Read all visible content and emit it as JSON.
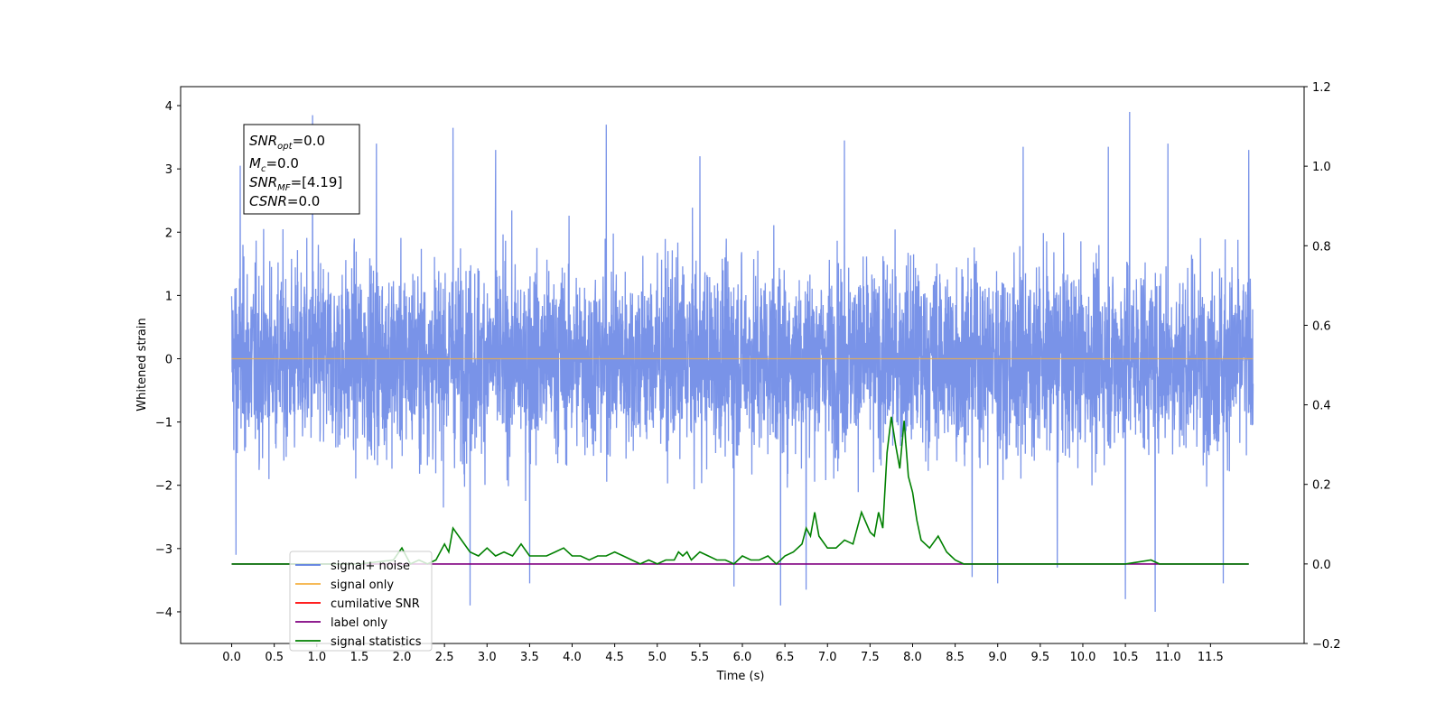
{
  "chart_data": {
    "type": "line",
    "xlabel": "Time (s)",
    "ylabel": "Whitened strain",
    "xlim": [
      -0.6,
      12.6
    ],
    "ylim": [
      -4.5,
      4.3
    ],
    "ylim_right": [
      -0.2,
      1.2
    ],
    "x_ticks": [
      "0.0",
      "0.5",
      "1.0",
      "1.5",
      "2.0",
      "2.5",
      "3.0",
      "3.5",
      "4.0",
      "4.5",
      "5.0",
      "5.5",
      "6.0",
      "6.5",
      "7.0",
      "7.5",
      "8.0",
      "8.5",
      "9.0",
      "9.5",
      "10.0",
      "10.5",
      "11.0",
      "11.5"
    ],
    "y_ticks": [
      "4",
      "3",
      "2",
      "1",
      "0",
      "−1",
      "−2",
      "−3",
      "−4"
    ],
    "y_ticks_right": [
      "1.2",
      "1.0",
      "0.8",
      "0.6",
      "0.4",
      "0.2",
      "0.0",
      "−0.2"
    ],
    "annotation": {
      "line1_main": "SNR",
      "line1_sub": "opt",
      "line1_val": "=0.0",
      "line2_main": "M",
      "line2_sub": "c",
      "line2_val": "=0.0",
      "line3_main": "SNR",
      "line3_sub": "MF",
      "line3_val": "=[4.19]",
      "line4_main": "CSNR",
      "line4_val": "=0.0"
    },
    "legend": {
      "placement": "lower-left",
      "entries": [
        {
          "label": "signal+ noise",
          "color": "#5a7be0"
        },
        {
          "label": "signal only",
          "color": "#f5b041"
        },
        {
          "label": "cumilative SNR",
          "color": "#ff0000"
        },
        {
          "label": "label only",
          "color": "#800080"
        },
        {
          "label": "signal statistics",
          "color": "#008000"
        }
      ]
    },
    "series": [
      {
        "name": "signal+ noise",
        "axis": "left",
        "color": "#5a7be0",
        "style": "dense noise, roughly -1.7 to 1.7 with spikes to about ±4",
        "x_range": [
          0.0,
          12.0
        ],
        "spikes": [
          [
            0.05,
            -3.1
          ],
          [
            0.1,
            3.05
          ],
          [
            0.95,
            3.85
          ],
          [
            1.7,
            3.4
          ],
          [
            2.6,
            3.65
          ],
          [
            2.8,
            -3.9
          ],
          [
            3.1,
            3.3
          ],
          [
            3.5,
            -3.55
          ],
          [
            4.4,
            3.7
          ],
          [
            5.5,
            3.2
          ],
          [
            5.9,
            -3.6
          ],
          [
            6.45,
            -3.9
          ],
          [
            6.75,
            -3.65
          ],
          [
            7.2,
            3.45
          ],
          [
            8.7,
            -3.45
          ],
          [
            9.0,
            -3.55
          ],
          [
            9.3,
            3.35
          ],
          [
            9.7,
            -3.3
          ],
          [
            10.3,
            3.35
          ],
          [
            10.5,
            -3.8
          ],
          [
            10.55,
            3.9
          ],
          [
            10.85,
            -4.0
          ],
          [
            11.0,
            3.4
          ],
          [
            11.65,
            -3.55
          ],
          [
            11.95,
            3.3
          ]
        ]
      },
      {
        "name": "signal only",
        "axis": "left",
        "color": "#f5b041",
        "x": [
          0.0,
          12.0
        ],
        "y": [
          0.0,
          0.0
        ]
      },
      {
        "name": "label only",
        "axis": "right",
        "color": "#800080",
        "x": [
          0.0,
          11.95
        ],
        "y": [
          0.0,
          0.0
        ]
      },
      {
        "name": "signal statistics",
        "axis": "right",
        "color": "#008000",
        "x": [
          0.0,
          0.5,
          1.0,
          1.5,
          1.9,
          2.0,
          2.05,
          2.1,
          2.2,
          2.3,
          2.4,
          2.5,
          2.55,
          2.6,
          2.7,
          2.8,
          2.9,
          3.0,
          3.1,
          3.2,
          3.3,
          3.4,
          3.5,
          3.6,
          3.7,
          3.8,
          3.9,
          4.0,
          4.1,
          4.2,
          4.3,
          4.4,
          4.5,
          4.6,
          4.7,
          4.8,
          4.9,
          5.0,
          5.1,
          5.2,
          5.25,
          5.3,
          5.35,
          5.4,
          5.45,
          5.5,
          5.6,
          5.7,
          5.8,
          5.9,
          6.0,
          6.1,
          6.2,
          6.3,
          6.4,
          6.5,
          6.6,
          6.7,
          6.75,
          6.8,
          6.85,
          6.9,
          7.0,
          7.1,
          7.2,
          7.3,
          7.4,
          7.5,
          7.55,
          7.6,
          7.65,
          7.7,
          7.75,
          7.8,
          7.85,
          7.9,
          7.95,
          8.0,
          8.05,
          8.1,
          8.2,
          8.3,
          8.4,
          8.5,
          8.6,
          8.8,
          9.0,
          9.5,
          10.0,
          10.5,
          10.8,
          10.9,
          11.0,
          11.5,
          11.95
        ],
        "y": [
          0.0,
          0.0,
          0.0,
          0.0,
          0.01,
          0.04,
          0.02,
          0.0,
          0.01,
          0.0,
          0.01,
          0.05,
          0.03,
          0.09,
          0.06,
          0.03,
          0.02,
          0.04,
          0.02,
          0.03,
          0.02,
          0.05,
          0.02,
          0.02,
          0.02,
          0.03,
          0.04,
          0.02,
          0.02,
          0.01,
          0.02,
          0.02,
          0.03,
          0.02,
          0.01,
          0.0,
          0.01,
          0.0,
          0.01,
          0.01,
          0.03,
          0.02,
          0.03,
          0.01,
          0.02,
          0.03,
          0.02,
          0.01,
          0.01,
          0.0,
          0.02,
          0.01,
          0.01,
          0.02,
          0.0,
          0.02,
          0.03,
          0.05,
          0.09,
          0.07,
          0.13,
          0.07,
          0.04,
          0.04,
          0.06,
          0.05,
          0.13,
          0.08,
          0.07,
          0.13,
          0.09,
          0.28,
          0.37,
          0.3,
          0.24,
          0.36,
          0.22,
          0.18,
          0.11,
          0.06,
          0.04,
          0.07,
          0.03,
          0.01,
          0.0,
          0.0,
          0.0,
          0.0,
          0.0,
          0.0,
          0.01,
          0.0,
          0.0,
          0.0,
          0.0
        ]
      }
    ]
  }
}
